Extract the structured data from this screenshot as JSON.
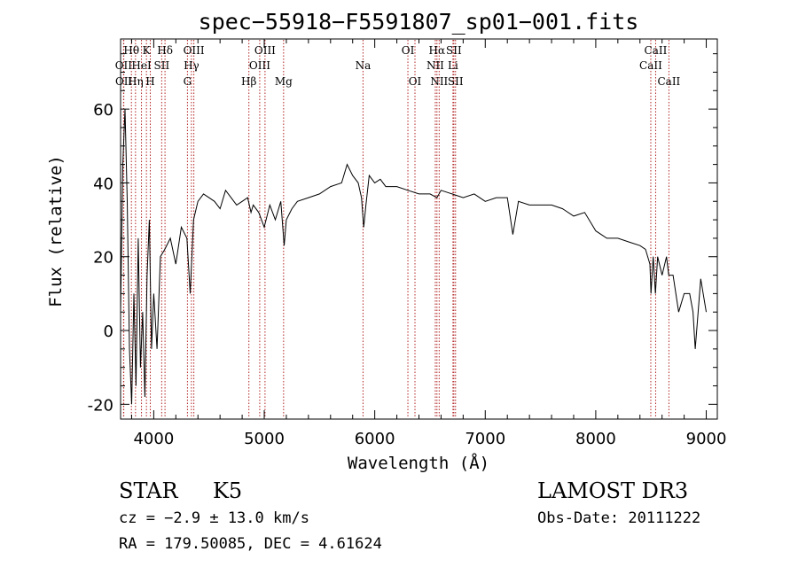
{
  "chart_data": {
    "type": "line",
    "title": "spec−55918−F5591807_sp01−001.fits",
    "xlabel": "Wavelength (Å)",
    "ylabel": "Flux (relative)",
    "xlim": [
      3700,
      9100
    ],
    "ylim": [
      -24,
      79
    ],
    "x_ticks": [
      4000,
      5000,
      6000,
      7000,
      8000,
      9000
    ],
    "y_ticks": [
      -20,
      0,
      20,
      40,
      60
    ],
    "series": [
      {
        "name": "flux",
        "x": [
          3700,
          3720,
          3740,
          3760,
          3780,
          3800,
          3820,
          3840,
          3860,
          3880,
          3900,
          3920,
          3940,
          3960,
          3980,
          4000,
          4030,
          4060,
          4100,
          4150,
          4200,
          4250,
          4300,
          4330,
          4360,
          4400,
          4450,
          4500,
          4550,
          4600,
          4650,
          4700,
          4750,
          4800,
          4850,
          4880,
          4900,
          4950,
          5000,
          5050,
          5100,
          5150,
          5180,
          5200,
          5250,
          5300,
          5400,
          5500,
          5600,
          5700,
          5750,
          5800,
          5850,
          5880,
          5900,
          5920,
          5950,
          6000,
          6050,
          6100,
          6200,
          6300,
          6400,
          6500,
          6563,
          6600,
          6700,
          6800,
          6900,
          7000,
          7100,
          7200,
          7250,
          7300,
          7400,
          7500,
          7600,
          7700,
          7800,
          7900,
          8000,
          8100,
          8200,
          8300,
          8400,
          8450,
          8490,
          8500,
          8520,
          8540,
          8560,
          8600,
          8640,
          8660,
          8700,
          8750,
          8800,
          8850,
          8880,
          8900,
          8950,
          9000
        ],
        "values": [
          5,
          45,
          60,
          35,
          -5,
          -20,
          10,
          -15,
          25,
          -10,
          5,
          -18,
          15,
          30,
          -5,
          10,
          -5,
          20,
          22,
          25,
          18,
          28,
          25,
          10,
          30,
          35,
          37,
          36,
          35,
          33,
          38,
          36,
          34,
          35,
          36,
          32,
          34,
          32,
          28,
          34,
          30,
          35,
          23,
          30,
          33,
          35,
          36,
          37,
          39,
          40,
          45,
          42,
          40,
          36,
          28,
          34,
          42,
          40,
          41,
          39,
          39,
          38,
          37,
          37,
          36,
          38,
          37,
          36,
          37,
          35,
          36,
          36,
          26,
          35,
          34,
          34,
          34,
          33,
          31,
          32,
          27,
          25,
          25,
          24,
          23,
          22,
          18,
          10,
          20,
          10,
          20,
          15,
          20,
          15,
          15,
          5,
          10,
          10,
          5,
          -5,
          14,
          5
        ]
      }
    ],
    "lines": [
      {
        "label": "Hθ",
        "wl": 3798,
        "row": 0
      },
      {
        "label": "OII",
        "wl": 3727,
        "row": 1
      },
      {
        "label": "OII",
        "wl": 3729,
        "row": 2
      },
      {
        "label": "Hη",
        "wl": 3835,
        "row": 2
      },
      {
        "label": "HeI",
        "wl": 3889,
        "row": 1
      },
      {
        "label": "K",
        "wl": 3934,
        "row": 0
      },
      {
        "label": "H",
        "wl": 3969,
        "row": 2
      },
      {
        "label": "SII",
        "wl": 4072,
        "row": 1
      },
      {
        "label": "Hδ",
        "wl": 4102,
        "row": 0
      },
      {
        "label": "G",
        "wl": 4305,
        "row": 2
      },
      {
        "label": "Hγ",
        "wl": 4341,
        "row": 1
      },
      {
        "label": "OIII",
        "wl": 4363,
        "row": 0
      },
      {
        "label": "Hβ",
        "wl": 4861,
        "row": 2
      },
      {
        "label": "OIII",
        "wl": 4959,
        "row": 1
      },
      {
        "label": "OIII",
        "wl": 5007,
        "row": 0
      },
      {
        "label": "Mg",
        "wl": 5175,
        "row": 2
      },
      {
        "label": "Na",
        "wl": 5894,
        "row": 1
      },
      {
        "label": "OI",
        "wl": 6300,
        "row": 0
      },
      {
        "label": "OI",
        "wl": 6364,
        "row": 2
      },
      {
        "label": "NII",
        "wl": 6548,
        "row": 1
      },
      {
        "label": "Hα",
        "wl": 6563,
        "row": 0
      },
      {
        "label": "NII",
        "wl": 6583,
        "row": 2
      },
      {
        "label": "SII",
        "wl": 6716,
        "row": 0
      },
      {
        "label": "Li",
        "wl": 6708,
        "row": 1
      },
      {
        "label": "SII",
        "wl": 6731,
        "row": 2
      },
      {
        "label": "CaII",
        "wl": 8498,
        "row": 1
      },
      {
        "label": "CaII",
        "wl": 8542,
        "row": 0
      },
      {
        "label": "CaII",
        "wl": 8662,
        "row": 2
      }
    ]
  },
  "info": {
    "class": "STAR",
    "subclass": "K5",
    "survey": "LAMOST DR3",
    "cz": "cz = −2.9 ± 13.0 km/s",
    "obs_date": "Obs-Date: 20111222",
    "coords": "RA = 179.50085, DEC =   4.61624"
  }
}
